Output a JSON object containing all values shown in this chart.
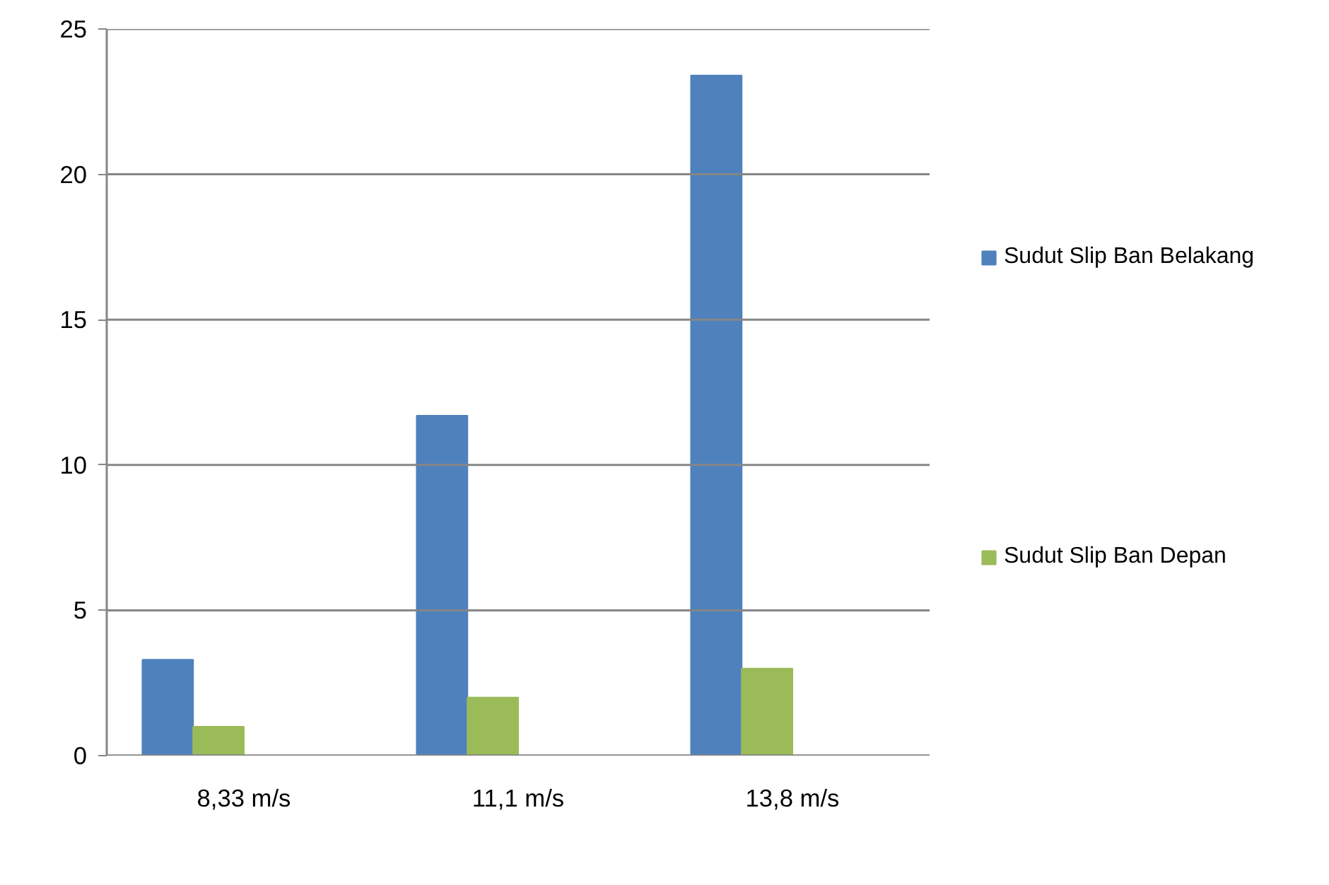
{
  "chart_data": {
    "type": "bar",
    "categories": [
      "8,33 m/s",
      "11,1 m/s",
      "13,8 m/s"
    ],
    "series": [
      {
        "name": "Sudut Slip Ban Belakang",
        "color": "#4f81bd",
        "values": [
          3.3,
          11.7,
          23.4
        ]
      },
      {
        "name": "Sudut Slip Ban Depan",
        "color": "#9bbb59",
        "values": [
          1.0,
          2.0,
          3.0
        ]
      }
    ],
    "ylim": [
      0,
      25
    ],
    "yticks": [
      0,
      5,
      10,
      15,
      20,
      25
    ],
    "grid": "y",
    "legend": "right"
  }
}
